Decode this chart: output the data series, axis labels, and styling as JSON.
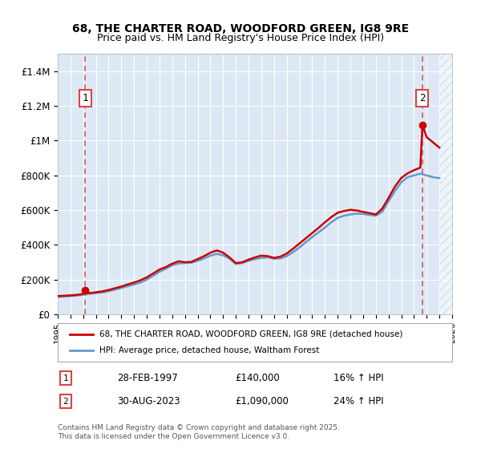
{
  "title": "68, THE CHARTER ROAD, WOODFORD GREEN, IG8 9RE",
  "subtitle": "Price paid vs. HM Land Registry's House Price Index (HPI)",
  "ylabel": "",
  "ylim": [
    0,
    1500000
  ],
  "yticks": [
    0,
    200000,
    400000,
    600000,
    800000,
    1000000,
    1200000,
    1400000
  ],
  "ytick_labels": [
    "£0",
    "£200K",
    "£400K",
    "£600K",
    "£800K",
    "£1M",
    "£1.2M",
    "£1.4M"
  ],
  "bg_color": "#dce9f5",
  "plot_bg": "#dce9f5",
  "legend_label_red": "68, THE CHARTER ROAD, WOODFORD GREEN, IG8 9RE (detached house)",
  "legend_label_blue": "HPI: Average price, detached house, Waltham Forest",
  "footer": "Contains HM Land Registry data © Crown copyright and database right 2025.\nThis data is licensed under the Open Government Licence v3.0.",
  "annotation1_label": "1",
  "annotation1_date": "28-FEB-1997",
  "annotation1_price": "£140,000",
  "annotation1_hpi": "16% ↑ HPI",
  "annotation2_label": "2",
  "annotation2_date": "30-AUG-2023",
  "annotation2_price": "£1,090,000",
  "annotation2_hpi": "24% ↑ HPI",
  "red_color": "#cc0000",
  "blue_color": "#6699cc",
  "dashed_red": "#dd4444",
  "hatch_color": "#bbccdd",
  "years_start": 1995,
  "years_end": 2026,
  "hpi_data": {
    "years": [
      1995.0,
      1995.5,
      1996.0,
      1996.5,
      1997.0,
      1997.5,
      1998.0,
      1998.5,
      1999.0,
      1999.5,
      2000.0,
      2000.5,
      2001.0,
      2001.5,
      2002.0,
      2002.5,
      2003.0,
      2003.5,
      2004.0,
      2004.5,
      2005.0,
      2005.5,
      2006.0,
      2006.5,
      2007.0,
      2007.5,
      2008.0,
      2008.5,
      2009.0,
      2009.5,
      2010.0,
      2010.5,
      2011.0,
      2011.5,
      2012.0,
      2012.5,
      2013.0,
      2013.5,
      2014.0,
      2014.5,
      2015.0,
      2015.5,
      2016.0,
      2016.5,
      2017.0,
      2017.5,
      2018.0,
      2018.5,
      2019.0,
      2019.5,
      2020.0,
      2020.5,
      2021.0,
      2021.5,
      2022.0,
      2022.5,
      2023.0,
      2023.5,
      2024.0,
      2024.5,
      2025.0
    ],
    "values": [
      100000,
      102000,
      105000,
      108000,
      113000,
      118000,
      122000,
      126000,
      133000,
      142000,
      152000,
      162000,
      172000,
      183000,
      200000,
      222000,
      245000,
      263000,
      283000,
      293000,
      295000,
      297000,
      308000,
      322000,
      338000,
      348000,
      340000,
      320000,
      290000,
      295000,
      308000,
      318000,
      325000,
      328000,
      320000,
      322000,
      335000,
      358000,
      385000,
      415000,
      445000,
      472000,
      500000,
      530000,
      555000,
      568000,
      575000,
      580000,
      578000,
      572000,
      568000,
      590000,
      650000,
      710000,
      760000,
      790000,
      800000,
      810000,
      800000,
      790000,
      785000
    ]
  },
  "price_data": {
    "years": [
      1995.0,
      1995.5,
      1996.0,
      1996.5,
      1997.0,
      1997.25,
      1997.5,
      1998.0,
      1998.5,
      1999.0,
      1999.5,
      2000.0,
      2000.5,
      2001.0,
      2001.5,
      2002.0,
      2002.5,
      2003.0,
      2003.5,
      2004.0,
      2004.5,
      2005.0,
      2005.5,
      2006.0,
      2006.5,
      2007.0,
      2007.5,
      2008.0,
      2008.5,
      2009.0,
      2009.5,
      2010.0,
      2010.5,
      2011.0,
      2011.5,
      2012.0,
      2012.5,
      2013.0,
      2013.5,
      2014.0,
      2014.5,
      2015.0,
      2015.5,
      2016.0,
      2016.5,
      2017.0,
      2017.5,
      2018.0,
      2018.5,
      2019.0,
      2019.5,
      2020.0,
      2020.5,
      2021.0,
      2021.5,
      2022.0,
      2022.5,
      2023.0,
      2023.5,
      2023.667,
      2024.0,
      2024.5,
      2025.0
    ],
    "values": [
      105000,
      107000,
      109000,
      112000,
      117000,
      140000,
      122000,
      127000,
      132000,
      140000,
      150000,
      160000,
      172000,
      183000,
      196000,
      213000,
      235000,
      258000,
      272000,
      292000,
      305000,
      300000,
      302000,
      318000,
      335000,
      355000,
      368000,
      355000,
      328000,
      295000,
      300000,
      315000,
      328000,
      338000,
      335000,
      325000,
      332000,
      350000,
      378000,
      408000,
      438000,
      468000,
      498000,
      530000,
      560000,
      585000,
      595000,
      602000,
      598000,
      590000,
      583000,
      575000,
      608000,
      670000,
      735000,
      785000,
      812000,
      830000,
      845000,
      1090000,
      1020000,
      990000,
      960000
    ]
  },
  "sale1_year": 1997.167,
  "sale1_price": 140000,
  "sale2_year": 2023.667,
  "sale2_price": 1090000,
  "x_tick_years": [
    1995,
    1996,
    1997,
    1998,
    1999,
    2000,
    2001,
    2002,
    2003,
    2004,
    2005,
    2006,
    2007,
    2008,
    2009,
    2010,
    2011,
    2012,
    2013,
    2014,
    2015,
    2016,
    2017,
    2018,
    2019,
    2020,
    2021,
    2022,
    2023,
    2024,
    2025,
    2026
  ]
}
